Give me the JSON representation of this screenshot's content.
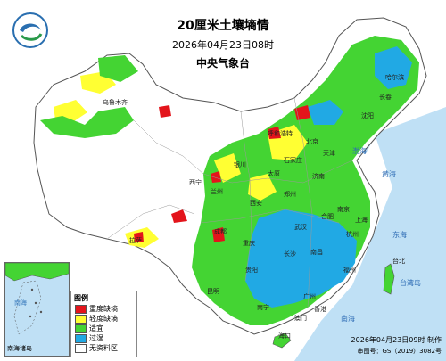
{
  "map": {
    "title": "20厘米土壤墒情",
    "datetime": "2026年04月23日08时",
    "agency": "中央气象台",
    "footer_time": "2026年04月23日09时 制作",
    "footer_no": "审图号：GS（2019）3082号",
    "inset_title": "南海诸岛",
    "inset_sea": "南海"
  },
  "legend": {
    "title": "图例",
    "items": [
      {
        "label": "重度缺墒",
        "color": "#e3141b"
      },
      {
        "label": "轻度缺墒",
        "color": "#ffff33"
      },
      {
        "label": "适宜",
        "color": "#44d433"
      },
      {
        "label": "过湿",
        "color": "#21a9e4"
      },
      {
        "label": "无资料区",
        "color": "#ffffff"
      }
    ]
  },
  "colors": {
    "sea": "#bfe0f5",
    "land_nodata": "#ffffff",
    "province_line": "#9a9a9a",
    "border_line": "#555555"
  },
  "labels": {
    "cities": [
      "北京",
      "天津",
      "石家庄",
      "太原",
      "济南",
      "郑州",
      "西安",
      "兰州",
      "西宁",
      "银川",
      "呼和浩特",
      "沈阳",
      "长春",
      "哈尔滨",
      "南京",
      "上海",
      "杭州",
      "合肥",
      "武汉",
      "长沙",
      "南昌",
      "福州",
      "台北",
      "广州",
      "南宁",
      "海口",
      "贵阳",
      "昆明",
      "成都",
      "重庆",
      "拉萨",
      "乌鲁木齐",
      "澳门",
      "香港"
    ],
    "seas": [
      "渤海",
      "黄海",
      "东海",
      "台湾岛",
      "南海"
    ]
  }
}
